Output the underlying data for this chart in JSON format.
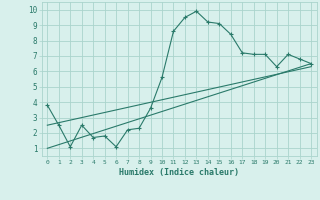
{
  "xlabel": "Humidex (Indice chaleur)",
  "ylabel": "",
  "background_color": "#d8f0ec",
  "grid_color": "#aad4cc",
  "line_color": "#2a7a6a",
  "xlim": [
    -0.5,
    23.5
  ],
  "ylim": [
    0.5,
    10.5
  ],
  "xtick_vals": [
    0,
    1,
    2,
    3,
    4,
    5,
    6,
    7,
    8,
    9,
    10,
    11,
    12,
    13,
    14,
    15,
    16,
    17,
    18,
    19,
    20,
    21,
    22,
    23
  ],
  "ytick_vals": [
    1,
    2,
    3,
    4,
    5,
    6,
    7,
    8,
    9,
    10
  ],
  "line1_x": [
    0,
    1,
    2,
    3,
    4,
    5,
    6,
    7,
    8,
    9,
    10,
    11,
    12,
    13,
    14,
    15,
    16,
    17,
    18,
    19,
    20,
    21,
    22,
    23
  ],
  "line1_y": [
    3.8,
    2.5,
    1.1,
    2.5,
    1.7,
    1.8,
    1.1,
    2.2,
    2.3,
    3.6,
    5.6,
    8.6,
    9.5,
    9.9,
    9.2,
    9.1,
    8.4,
    7.2,
    7.1,
    7.1,
    6.3,
    7.1,
    6.8,
    6.5
  ],
  "line2_x": [
    0,
    23
  ],
  "line2_y": [
    1.0,
    6.5
  ],
  "line3_x": [
    0,
    23
  ],
  "line3_y": [
    2.5,
    6.3
  ],
  "marker": "+"
}
